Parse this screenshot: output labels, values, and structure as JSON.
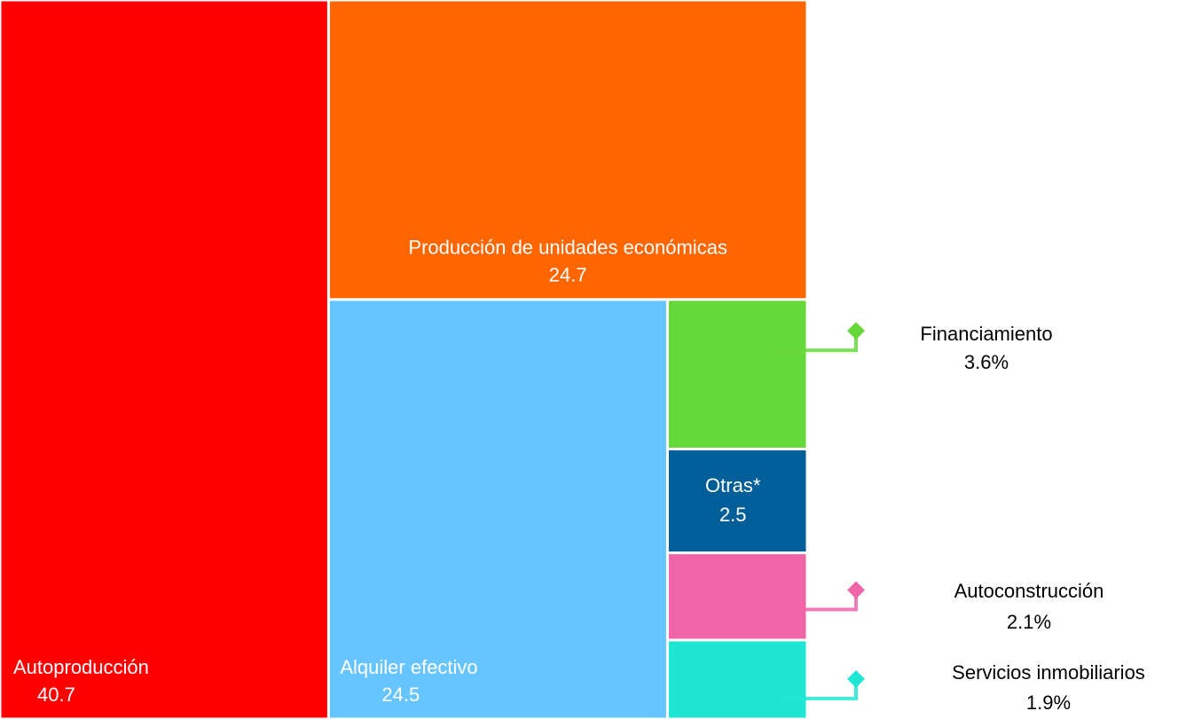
{
  "chart_data": {
    "type": "treemap",
    "categories": [
      "Autoproducción",
      "Producción de unidades económicas",
      "Alquiler efectivo",
      "Financiamiento",
      "Otras*",
      "Autoconstrucción",
      "Servicios inmobiliarios"
    ],
    "values": [
      40.7,
      24.7,
      24.5,
      3.6,
      2.5,
      2.1,
      1.9
    ],
    "value_labels": [
      "40.7",
      "24.7",
      "24.5",
      "3.6%",
      "2.5",
      "2.1%",
      "1.9%"
    ],
    "colors": [
      "#ff0000",
      "#ff6600",
      "#66c5ff",
      "#66d93a",
      "#005f99",
      "#f064a8",
      "#1ee6d2"
    ]
  }
}
